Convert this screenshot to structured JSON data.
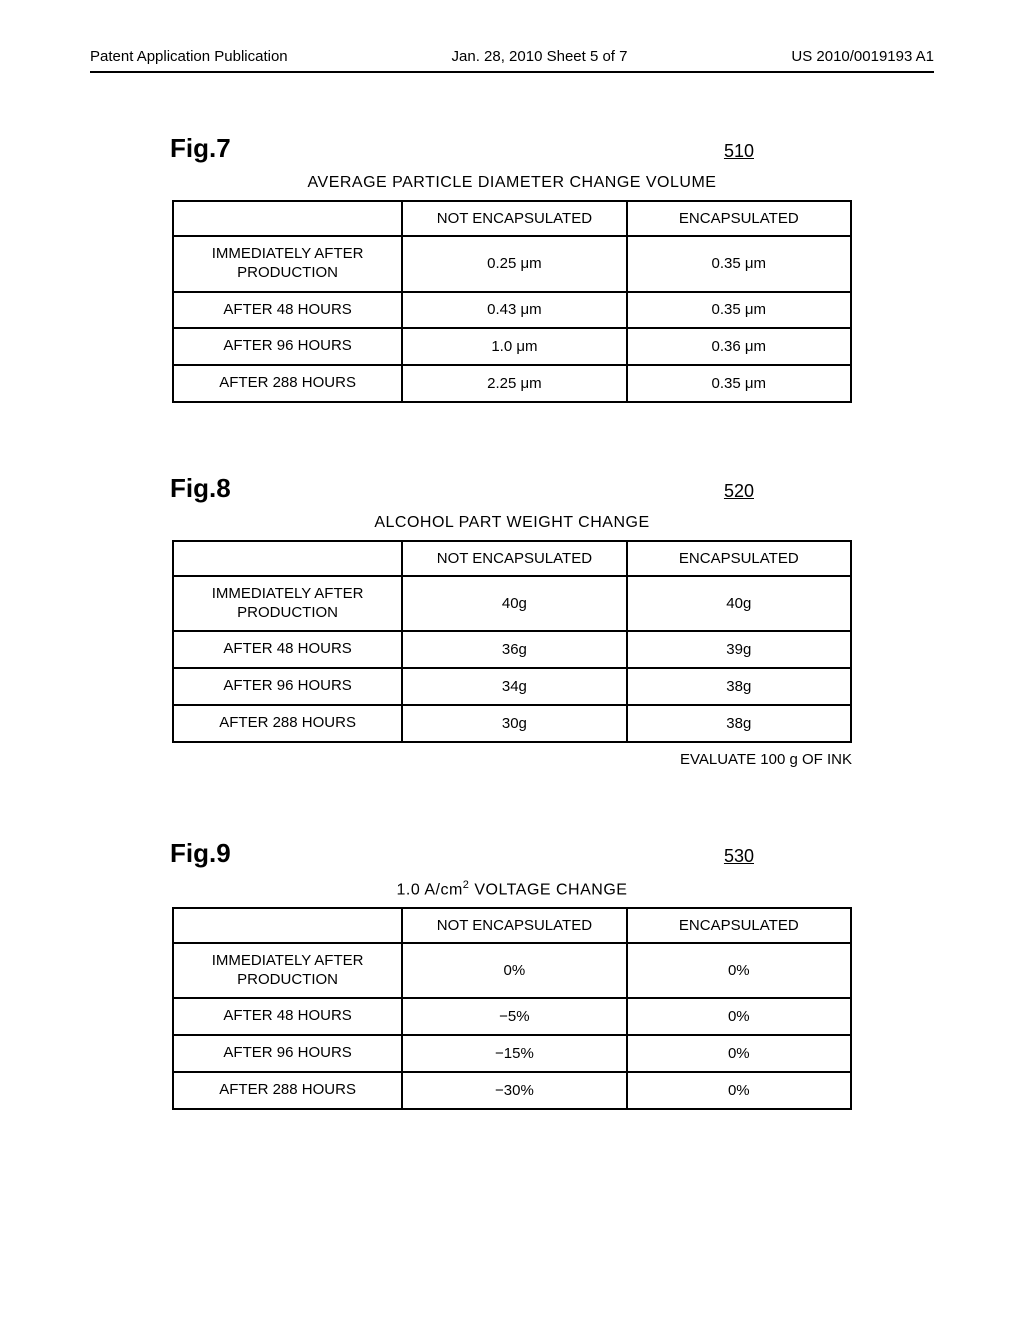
{
  "header": {
    "left": "Patent Application Publication",
    "center": "Jan. 28, 2010  Sheet 5 of 7",
    "right": "US 2010/0019193 A1"
  },
  "figures": [
    {
      "label": "Fig.7",
      "ref": "510",
      "title_html": "AVERAGE PARTICLE DIAMETER CHANGE VOLUME",
      "columns": [
        "",
        "NOT ENCAPSULATED",
        "ENCAPSULATED"
      ],
      "rows": [
        {
          "label": "IMMEDIATELY AFTER\nPRODUCTION",
          "cells": [
            "0.25 μm",
            "0.35 μm"
          ]
        },
        {
          "label": "AFTER 48 HOURS",
          "cells": [
            "0.43 μm",
            "0.35 μm"
          ]
        },
        {
          "label": "AFTER 96 HOURS",
          "cells": [
            "1.0 μm",
            "0.36 μm"
          ]
        },
        {
          "label": "AFTER 288 HOURS",
          "cells": [
            "2.25 μm",
            "0.35 μm"
          ]
        }
      ],
      "footnote": ""
    },
    {
      "label": "Fig.8",
      "ref": "520",
      "title_html": "ALCOHOL PART WEIGHT CHANGE",
      "columns": [
        "",
        "NOT ENCAPSULATED",
        "ENCAPSULATED"
      ],
      "rows": [
        {
          "label": "IMMEDIATELY AFTER\nPRODUCTION",
          "cells": [
            "40g",
            "40g"
          ]
        },
        {
          "label": "AFTER 48 HOURS",
          "cells": [
            "36g",
            "39g"
          ]
        },
        {
          "label": "AFTER 96 HOURS",
          "cells": [
            "34g",
            "38g"
          ]
        },
        {
          "label": "AFTER 288 HOURS",
          "cells": [
            "30g",
            "38g"
          ]
        }
      ],
      "footnote": "EVALUATE 100 g OF INK"
    },
    {
      "label": "Fig.9",
      "ref": "530",
      "title_html": "1.0 A/cm<sup>2</sup> VOLTAGE CHANGE",
      "columns": [
        "",
        "NOT ENCAPSULATED",
        "ENCAPSULATED"
      ],
      "rows": [
        {
          "label": "IMMEDIATELY AFTER\nPRODUCTION",
          "cells": [
            "0%",
            "0%"
          ]
        },
        {
          "label": "AFTER 48 HOURS",
          "cells": [
            "−5%",
            "0%"
          ]
        },
        {
          "label": "AFTER 96 HOURS",
          "cells": [
            "−15%",
            "0%"
          ]
        },
        {
          "label": "AFTER 288 HOURS",
          "cells": [
            "−30%",
            "0%"
          ]
        }
      ],
      "footnote": ""
    }
  ]
}
